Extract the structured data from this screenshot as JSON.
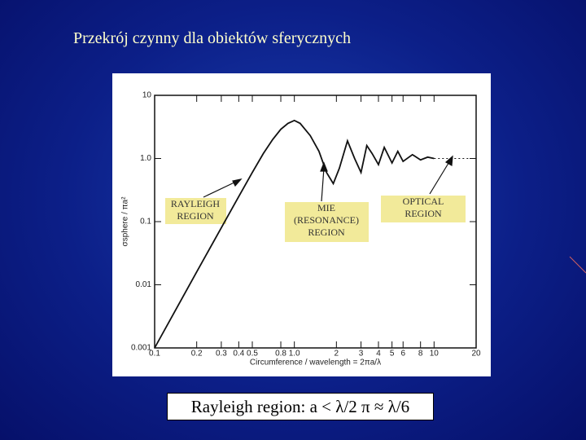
{
  "slide": {
    "title": "Przekrój czynny dla obiektów sferycznych",
    "footer": "Rayleigh region: a < λ/2 π ≈ λ/6"
  },
  "chart_data": {
    "type": "line",
    "log_x": true,
    "log_y": true,
    "x_label": "Circumference / wavelength = 2πa/λ",
    "y_label": "σsphere / πa²",
    "xlim": [
      0.1,
      20
    ],
    "ylim": [
      0.001,
      10
    ],
    "xticks": [
      0.1,
      0.2,
      0.3,
      0.4,
      0.5,
      0.8,
      {
        "value": 1,
        "label": "1.0"
      },
      2,
      3,
      4,
      5,
      6,
      8,
      10,
      20
    ],
    "yticks": [
      0.001,
      0.01,
      0.1,
      {
        "value": 1,
        "label": "1.0"
      },
      10
    ],
    "series": [
      {
        "color": "#111111",
        "dashed": false,
        "x": [
          0.1,
          0.2,
          0.3,
          0.4,
          0.5,
          0.6,
          0.7,
          0.8,
          0.9,
          1.0,
          1.1,
          1.3,
          1.5,
          1.7,
          1.9,
          2.1,
          2.4,
          2.7,
          3.0,
          3.3,
          3.6,
          4.0,
          4.4,
          5.0,
          5.5,
          6.0,
          7.0,
          8.0,
          9.0,
          10
        ],
        "values": [
          0.001,
          0.016,
          0.08,
          0.25,
          0.6,
          1.2,
          2.0,
          2.9,
          3.6,
          4.0,
          3.6,
          2.3,
          1.3,
          0.6,
          0.4,
          0.7,
          1.9,
          1.0,
          0.6,
          1.6,
          1.2,
          0.8,
          1.5,
          0.85,
          1.3,
          0.9,
          1.15,
          0.95,
          1.05,
          1.0
        ]
      },
      {
        "color": "#111111",
        "dashed": true,
        "x": [
          10,
          20
        ],
        "values": [
          1.0,
          1.0
        ]
      }
    ],
    "annotations": [
      {
        "lines": [
          "RAYLEIGH",
          "REGION"
        ]
      },
      {
        "lines": [
          "MIE",
          "(RESONANCE)",
          "REGION"
        ]
      },
      {
        "lines": [
          "OPTICAL",
          "REGION"
        ]
      }
    ]
  }
}
